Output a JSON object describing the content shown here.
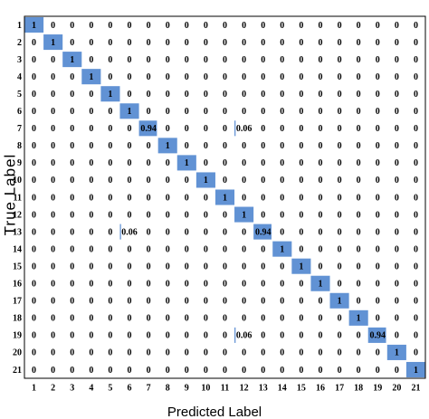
{
  "chart_data": {
    "type": "heatmap",
    "xlabel": "Predicted Label",
    "ylabel": "True Label",
    "color": "#6192d4",
    "x_categories": [
      "1",
      "2",
      "3",
      "4",
      "5",
      "6",
      "7",
      "8",
      "9",
      "10",
      "11",
      "12",
      "13",
      "14",
      "15",
      "16",
      "17",
      "18",
      "19",
      "20",
      "21"
    ],
    "y_categories": [
      "1",
      "2",
      "3",
      "4",
      "5",
      "6",
      "7",
      "8",
      "9",
      "10",
      "11",
      "12",
      "13",
      "14",
      "15",
      "16",
      "17",
      "18",
      "19",
      "20",
      "21"
    ],
    "values": [
      [
        1,
        0,
        0,
        0,
        0,
        0,
        0,
        0,
        0,
        0,
        0,
        0,
        0,
        0,
        0,
        0,
        0,
        0,
        0,
        0,
        0
      ],
      [
        0,
        1,
        0,
        0,
        0,
        0,
        0,
        0,
        0,
        0,
        0,
        0,
        0,
        0,
        0,
        0,
        0,
        0,
        0,
        0,
        0
      ],
      [
        0,
        0,
        1,
        0,
        0,
        0,
        0,
        0,
        0,
        0,
        0,
        0,
        0,
        0,
        0,
        0,
        0,
        0,
        0,
        0,
        0
      ],
      [
        0,
        0,
        0,
        1,
        0,
        0,
        0,
        0,
        0,
        0,
        0,
        0,
        0,
        0,
        0,
        0,
        0,
        0,
        0,
        0,
        0
      ],
      [
        0,
        0,
        0,
        0,
        1,
        0,
        0,
        0,
        0,
        0,
        0,
        0,
        0,
        0,
        0,
        0,
        0,
        0,
        0,
        0,
        0
      ],
      [
        0,
        0,
        0,
        0,
        0,
        1,
        0,
        0,
        0,
        0,
        0,
        0,
        0,
        0,
        0,
        0,
        0,
        0,
        0,
        0,
        0
      ],
      [
        0,
        0,
        0,
        0,
        0,
        0,
        0.94,
        0,
        0,
        0,
        0,
        0.06,
        0,
        0,
        0,
        0,
        0,
        0,
        0,
        0,
        0
      ],
      [
        0,
        0,
        0,
        0,
        0,
        0,
        0,
        1,
        0,
        0,
        0,
        0,
        0,
        0,
        0,
        0,
        0,
        0,
        0,
        0,
        0
      ],
      [
        0,
        0,
        0,
        0,
        0,
        0,
        0,
        0,
        1,
        0,
        0,
        0,
        0,
        0,
        0,
        0,
        0,
        0,
        0,
        0,
        0
      ],
      [
        0,
        0,
        0,
        0,
        0,
        0,
        0,
        0,
        0,
        1,
        0,
        0,
        0,
        0,
        0,
        0,
        0,
        0,
        0,
        0,
        0
      ],
      [
        0,
        0,
        0,
        0,
        0,
        0,
        0,
        0,
        0,
        0,
        1,
        0,
        0,
        0,
        0,
        0,
        0,
        0,
        0,
        0,
        0
      ],
      [
        0,
        0,
        0,
        0,
        0,
        0,
        0,
        0,
        0,
        0,
        0,
        1,
        0,
        0,
        0,
        0,
        0,
        0,
        0,
        0,
        0
      ],
      [
        0,
        0,
        0,
        0,
        0,
        0.06,
        0,
        0,
        0,
        0,
        0,
        0,
        0.94,
        0,
        0,
        0,
        0,
        0,
        0,
        0,
        0
      ],
      [
        0,
        0,
        0,
        0,
        0,
        0,
        0,
        0,
        0,
        0,
        0,
        0,
        0,
        1,
        0,
        0,
        0,
        0,
        0,
        0,
        0
      ],
      [
        0,
        0,
        0,
        0,
        0,
        0,
        0,
        0,
        0,
        0,
        0,
        0,
        0,
        0,
        1,
        0,
        0,
        0,
        0,
        0,
        0
      ],
      [
        0,
        0,
        0,
        0,
        0,
        0,
        0,
        0,
        0,
        0,
        0,
        0,
        0,
        0,
        0,
        1,
        0,
        0,
        0,
        0,
        0
      ],
      [
        0,
        0,
        0,
        0,
        0,
        0,
        0,
        0,
        0,
        0,
        0,
        0,
        0,
        0,
        0,
        0,
        1,
        0,
        0,
        0,
        0
      ],
      [
        0,
        0,
        0,
        0,
        0,
        0,
        0,
        0,
        0,
        0,
        0,
        0,
        0,
        0,
        0,
        0,
        0,
        1,
        0,
        0,
        0
      ],
      [
        0,
        0,
        0,
        0,
        0,
        0,
        0,
        0,
        0,
        0,
        0,
        0.06,
        0,
        0,
        0,
        0,
        0,
        0,
        0.94,
        0,
        0
      ],
      [
        0,
        0,
        0,
        0,
        0,
        0,
        0,
        0,
        0,
        0,
        0,
        0,
        0,
        0,
        0,
        0,
        0,
        0,
        0,
        1,
        0
      ],
      [
        0,
        0,
        0,
        0,
        0,
        0,
        0,
        0,
        0,
        0,
        0,
        0,
        0,
        0,
        0,
        0,
        0,
        0,
        0,
        0,
        1
      ]
    ]
  }
}
